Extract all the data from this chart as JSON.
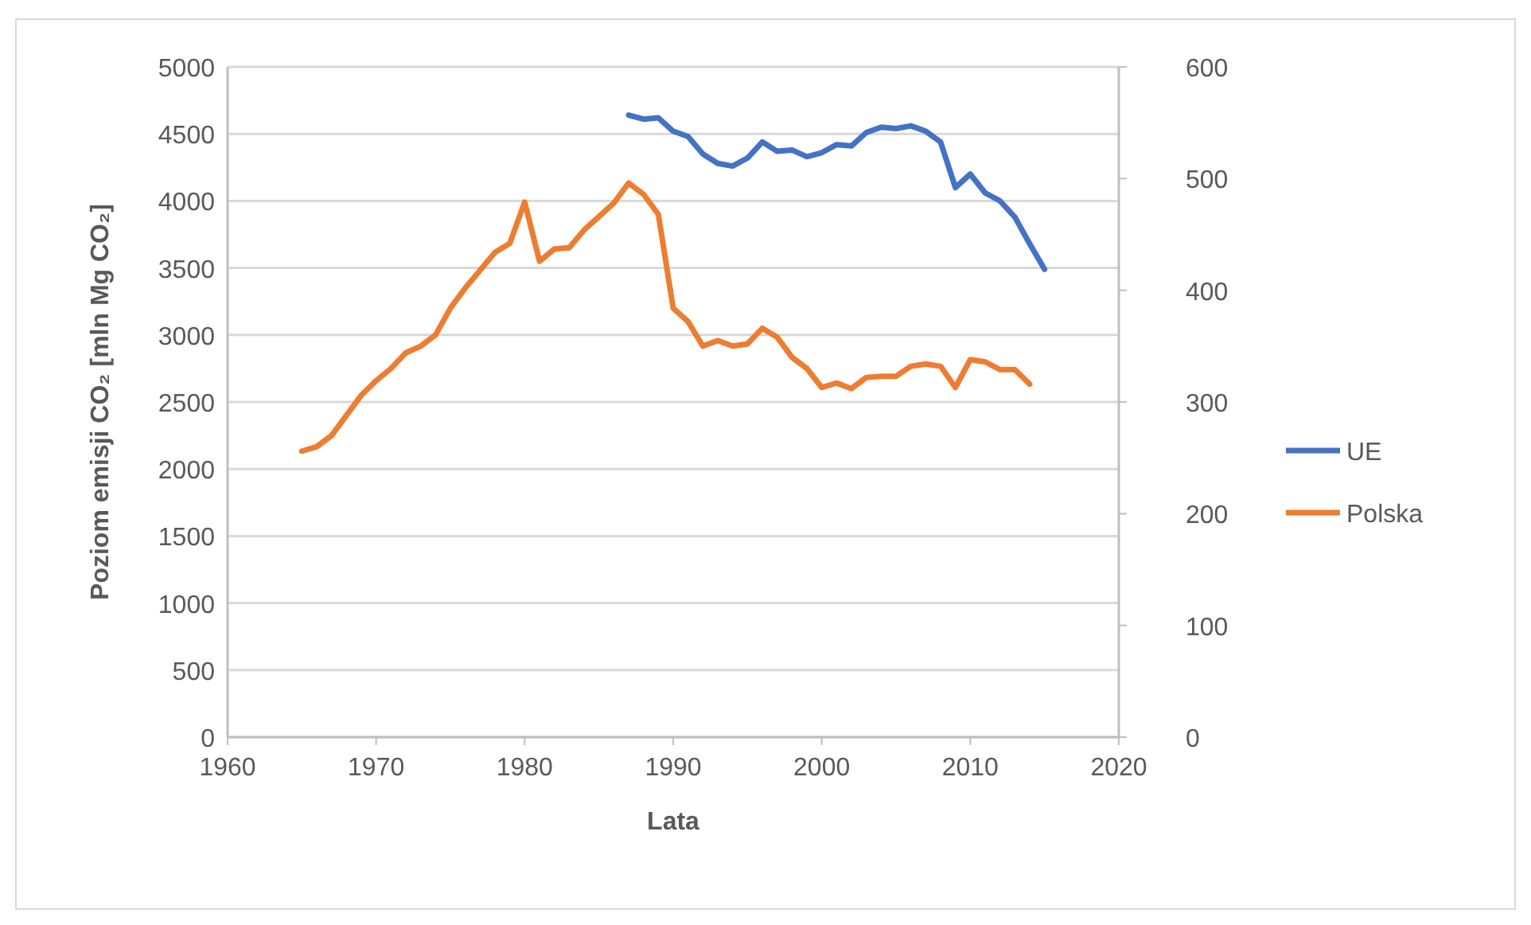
{
  "chart_data": {
    "type": "line",
    "xlabel": "Lata",
    "ylabel": "Poziom emisji CO₂ [mln Mg CO₂]",
    "xlim": [
      1960,
      2020
    ],
    "xticks": [
      1960,
      1970,
      1980,
      1990,
      2000,
      2010,
      2020
    ],
    "ylim": [
      0,
      5000
    ],
    "yticks": [
      0,
      500,
      1000,
      1500,
      2000,
      2500,
      3000,
      3500,
      4000,
      4500,
      5000
    ],
    "y2lim": [
      0,
      600
    ],
    "y2ticks": [
      0,
      100,
      200,
      300,
      400,
      500,
      600
    ],
    "grid": "y",
    "legend": "right",
    "marker": "none",
    "line_style": "solid",
    "series": [
      {
        "name": "UE",
        "color": "#4472c4",
        "x": [
          1987,
          1988,
          1989,
          1990,
          1991,
          1992,
          1993,
          1994,
          1995,
          1996,
          1997,
          1998,
          1999,
          2000,
          2001,
          2002,
          2003,
          2004,
          2005,
          2006,
          2007,
          2008,
          2009,
          2010,
          2011,
          2012,
          2013,
          2014,
          2015
        ],
        "values": [
          4640,
          4610,
          4620,
          4520,
          4480,
          4350,
          4280,
          4260,
          4320,
          4440,
          4370,
          4380,
          4330,
          4360,
          4420,
          4410,
          4510,
          4550,
          4540,
          4560,
          4520,
          4440,
          4100,
          4200,
          4060,
          4000,
          3880,
          3680,
          3490
        ]
      },
      {
        "name": "Polska",
        "color": "#ed7d31",
        "axis": "y2",
        "x": [
          1965,
          1966,
          1967,
          1968,
          1969,
          1970,
          1971,
          1972,
          1973,
          1974,
          1975,
          1976,
          1977,
          1978,
          1979,
          1980,
          1981,
          1982,
          1983,
          1984,
          1985,
          1986,
          1987,
          1988,
          1989,
          1990,
          1991,
          1992,
          1993,
          1994,
          1995,
          1996,
          1997,
          1998,
          1999,
          2000,
          2001,
          2002,
          2003,
          2004,
          2005,
          2006,
          2007,
          2008,
          2009,
          2010,
          2011,
          2012,
          2013,
          2014
        ],
        "values": [
          256,
          260,
          270,
          288,
          306,
          319,
          330,
          344,
          350,
          360,
          384,
          402,
          418,
          434,
          442,
          479,
          426,
          437,
          438,
          454,
          466,
          478,
          496,
          486,
          468,
          384,
          372,
          350,
          355,
          350,
          352,
          366,
          358,
          340,
          330,
          313,
          317,
          312,
          322,
          323,
          323,
          332,
          334,
          332,
          313,
          338,
          336,
          329,
          329,
          316
        ]
      }
    ]
  }
}
